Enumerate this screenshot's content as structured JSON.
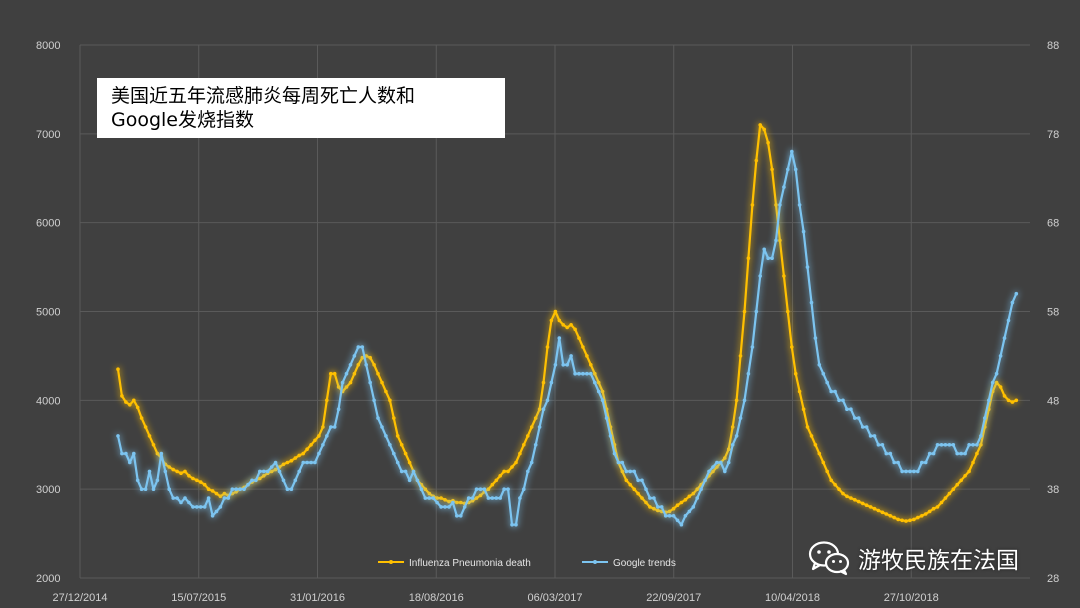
{
  "title_lines": [
    "美国近五年流感肺炎每周死亡人数和",
    "Google发烧指数"
  ],
  "watermark": "游牧民族在法国",
  "wechat_icon": "wechat-icon",
  "colors": {
    "background": "#404040",
    "grid": "#5a5a5a",
    "flu": "#ffc000",
    "google": "#7cc4f0"
  },
  "chart_data": {
    "type": "line",
    "title": "美国近五年流感肺炎每周死亡人数和 Google发烧指数",
    "x_labels": [
      "27/12/2014",
      "15/07/2015",
      "31/01/2016",
      "18/08/2016",
      "06/03/2017",
      "22/09/2017",
      "10/04/2018",
      "27/10/2018"
    ],
    "x_range": [
      "27/12/2014",
      "15/05/2019"
    ],
    "y_left": {
      "ticks": [
        2000,
        3000,
        4000,
        5000,
        6000,
        7000,
        8000
      ],
      "range": [
        2000,
        8000
      ]
    },
    "y_right": {
      "ticks": [
        28,
        38,
        48,
        58,
        68,
        78,
        88
      ],
      "range": [
        28,
        88
      ]
    },
    "grid": true,
    "legend_position": "bottom-center",
    "series": [
      {
        "name": "Influenza Pneumonia death",
        "axis": "left",
        "x_start": "01/03/2015",
        "x_end": "22/04/2019",
        "values": [
          4350,
          4050,
          3980,
          3950,
          4000,
          3920,
          3800,
          3700,
          3600,
          3500,
          3400,
          3350,
          3280,
          3250,
          3220,
          3200,
          3180,
          3200,
          3150,
          3120,
          3100,
          3080,
          3050,
          3000,
          2980,
          2950,
          2920,
          2950,
          2930,
          2950,
          2970,
          3000,
          3020,
          3050,
          3080,
          3100,
          3120,
          3150,
          3180,
          3200,
          3220,
          3250,
          3280,
          3300,
          3320,
          3350,
          3380,
          3400,
          3450,
          3500,
          3550,
          3600,
          3700,
          4000,
          4300,
          4300,
          4150,
          4100,
          4150,
          4200,
          4300,
          4400,
          4480,
          4500,
          4480,
          4400,
          4300,
          4200,
          4100,
          4000,
          3800,
          3600,
          3500,
          3400,
          3300,
          3200,
          3100,
          3050,
          3000,
          2950,
          2920,
          2900,
          2900,
          2880,
          2860,
          2870,
          2850,
          2850,
          2840,
          2850,
          2870,
          2900,
          2930,
          2970,
          3000,
          3050,
          3100,
          3150,
          3200,
          3200,
          3250,
          3300,
          3400,
          3500,
          3600,
          3700,
          3800,
          3900,
          4200,
          4600,
          4900,
          5000,
          4900,
          4850,
          4820,
          4850,
          4800,
          4700,
          4600,
          4500,
          4400,
          4300,
          4200,
          4100,
          3900,
          3700,
          3500,
          3300,
          3200,
          3100,
          3050,
          3000,
          2950,
          2900,
          2850,
          2800,
          2780,
          2760,
          2750,
          2740,
          2750,
          2780,
          2820,
          2850,
          2880,
          2920,
          2950,
          3000,
          3050,
          3100,
          3150,
          3200,
          3250,
          3300,
          3350,
          3450,
          3700,
          4000,
          4500,
          5000,
          5600,
          6200,
          6700,
          7100,
          7050,
          6900,
          6600,
          6200,
          5800,
          5400,
          5000,
          4600,
          4300,
          4100,
          3900,
          3700,
          3600,
          3500,
          3400,
          3300,
          3200,
          3100,
          3050,
          3000,
          2950,
          2920,
          2900,
          2880,
          2860,
          2840,
          2820,
          2800,
          2780,
          2760,
          2740,
          2720,
          2700,
          2680,
          2660,
          2650,
          2640,
          2650,
          2660,
          2680,
          2700,
          2720,
          2750,
          2780,
          2800,
          2850,
          2900,
          2950,
          3000,
          3050,
          3100,
          3150,
          3200,
          3300,
          3400,
          3500,
          3700,
          3900,
          4100,
          4200,
          4150,
          4050,
          4000,
          3980,
          4000
        ]
      },
      {
        "name": "Google trends",
        "axis": "right",
        "x_start": "01/03/2015",
        "x_end": "22/04/2019",
        "values": [
          44,
          42,
          42,
          41,
          42,
          39,
          38,
          38,
          40,
          38,
          39,
          42,
          40,
          38,
          37,
          37,
          36.5,
          37,
          36.5,
          36,
          36,
          36,
          36,
          37,
          35,
          35.5,
          36,
          37,
          37,
          38,
          38,
          38,
          38,
          38.5,
          39,
          39,
          40,
          40,
          40,
          40.5,
          41,
          40,
          39,
          38,
          38,
          39,
          40,
          41,
          41,
          41,
          41,
          42,
          43,
          44,
          45,
          45,
          47,
          50,
          51,
          52,
          53,
          54,
          54,
          52,
          50,
          48,
          46,
          45,
          44,
          43,
          42,
          41,
          40,
          40,
          39,
          40,
          39,
          38,
          37,
          37,
          37,
          36.5,
          36,
          36,
          36,
          36.5,
          35,
          35,
          36,
          37,
          37,
          38,
          38,
          38,
          37,
          37,
          37,
          37,
          38,
          38,
          34,
          34,
          37,
          38,
          40,
          41,
          43,
          45,
          47,
          48,
          50,
          52,
          55,
          52,
          52,
          53,
          51,
          51,
          51,
          51,
          51,
          50,
          49,
          48,
          46,
          44,
          42,
          41,
          41,
          40,
          40,
          40,
          39,
          39,
          38,
          37,
          37,
          36,
          36,
          35,
          35,
          35,
          34.5,
          34,
          35,
          35.5,
          36,
          37,
          38,
          39,
          40,
          40.5,
          41,
          41,
          40,
          41,
          43,
          44,
          46,
          48,
          51,
          54,
          58,
          62,
          65,
          64,
          64,
          66,
          70,
          72,
          74,
          76,
          74,
          70,
          67,
          63,
          59,
          55,
          52,
          51,
          50,
          49,
          49,
          48,
          48,
          47,
          47,
          46,
          46,
          45,
          45,
          44,
          44,
          43,
          43,
          42,
          42,
          41,
          41,
          40,
          40,
          40,
          40,
          40,
          41,
          41,
          42,
          42,
          43,
          43,
          43,
          43,
          43,
          42,
          42,
          42,
          43,
          43,
          43,
          44,
          46,
          48,
          50,
          51,
          53,
          55,
          57,
          59,
          60
        ]
      }
    ]
  }
}
